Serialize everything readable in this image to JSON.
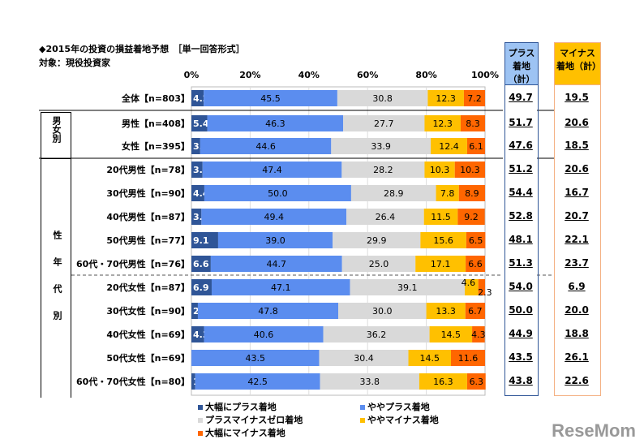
{
  "title": "◆2015年の投資の損益着地予想　［単一回答形式］",
  "subtitle": "対象：現役投資家",
  "side_labels": {
    "gender": "男女別",
    "age": "性年代別"
  },
  "plus_header": "プラス着地（計）",
  "minus_header": "マイナス着地（計）",
  "colors": {
    "strong_plus": "#2F5597",
    "plus": "#5B8DEF",
    "zero": "#D9D9D9",
    "minus": "#FFC000",
    "strong_minus": "#FF6600",
    "plus_box": "#9DC3F3",
    "minus_box": "#FFC000"
  },
  "chart_data": {
    "type": "bar",
    "stacked": true,
    "orientation": "horizontal",
    "xlim": [
      0,
      100
    ],
    "xticks": [
      "0%",
      "20%",
      "40%",
      "60%",
      "80%",
      "100%"
    ],
    "categories": [
      "全体【n=803】",
      "男性【n=408】",
      "女性【n=395】",
      "20代男性【n=78】",
      "30代男性【n=90】",
      "40代男性【n=87】",
      "50代男性【n=77】",
      "60代・70代男性【n=76】",
      "20代女性【n=87】",
      "30代女性【n=90】",
      "40代女性【n=69】",
      "50代女性【n=69】",
      "60代・70代女性【n=80】"
    ],
    "series": [
      {
        "name": "大幅にプラス着地",
        "values": [
          4.2,
          5.4,
          3.0,
          3.8,
          4.4,
          3.4,
          9.1,
          6.6,
          6.9,
          2.2,
          4.3,
          0.0,
          1.3
        ]
      },
      {
        "name": "ややプラス着地",
        "values": [
          45.5,
          46.3,
          44.6,
          47.4,
          50.0,
          49.4,
          39.0,
          44.7,
          47.1,
          47.8,
          40.6,
          43.5,
          42.5
        ]
      },
      {
        "name": "プラスマイナスゼロ着地",
        "values": [
          30.8,
          27.7,
          33.9,
          28.2,
          28.9,
          26.4,
          29.9,
          25.0,
          39.1,
          30.0,
          36.2,
          30.4,
          33.8
        ]
      },
      {
        "name": "ややマイナス着地",
        "values": [
          12.3,
          12.3,
          12.4,
          10.3,
          7.8,
          11.5,
          15.6,
          17.1,
          4.6,
          13.3,
          14.5,
          14.5,
          16.3
        ]
      },
      {
        "name": "大幅にマイナス着地",
        "values": [
          7.2,
          8.3,
          6.1,
          10.3,
          8.9,
          9.2,
          6.5,
          6.6,
          2.3,
          6.7,
          4.3,
          11.6,
          6.3
        ]
      }
    ],
    "plus_total": [
      "49.7",
      "51.7",
      "47.6",
      "51.2",
      "54.4",
      "52.8",
      "48.1",
      "51.3",
      "54.0",
      "50.0",
      "44.9",
      "43.5",
      "43.8"
    ],
    "minus_total": [
      "19.5",
      "20.6",
      "18.5",
      "20.6",
      "16.7",
      "20.7",
      "22.1",
      "23.7",
      "6.9",
      "20.0",
      "18.8",
      "26.1",
      "22.6"
    ]
  }
}
